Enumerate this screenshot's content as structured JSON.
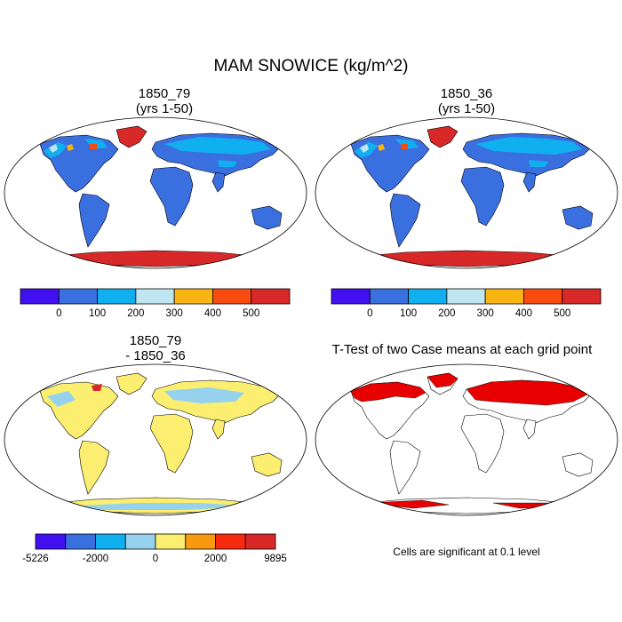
{
  "figure": {
    "title": "MAM SNOWICE (kg/m^2)"
  },
  "panels": [
    {
      "title_line1": "1850_79",
      "title_line2": "(yrs 1-50)"
    },
    {
      "title_line1": "1850_36",
      "title_line2": "(yrs 1-50)"
    },
    {
      "title_line1": "1850_79",
      "title_line2": "- 1850_36"
    },
    {
      "title_line1": "T-Test of two Case means at each grid point",
      "title_line2": ""
    }
  ],
  "colorbars": {
    "top": {
      "colors": [
        "#4010f0",
        "#3a6fe0",
        "#10b0f0",
        "#bfe6f0",
        "#f8b410",
        "#f84b10",
        "#d82828"
      ],
      "labels": [
        "0",
        "100",
        "200",
        "300",
        "400",
        "500"
      ]
    },
    "bottom": {
      "colors": [
        "#4010f0",
        "#3a6fe0",
        "#10b0f0",
        "#96d2ee",
        "#fbee70",
        "#f89a10",
        "#f82a10",
        "#d82828"
      ],
      "labels": [
        "-5226",
        "-2000",
        "0",
        "2000",
        "9895"
      ]
    }
  },
  "ttest_note": "Cells are significant at 0.1 level",
  "colors": {
    "ocean": "#ffffff",
    "land_base": "#3a6fe0",
    "antarctica": "#d82828",
    "diff_land": "#fbee70",
    "diff_negative": "#96d2ee",
    "significant": "#e80000"
  }
}
